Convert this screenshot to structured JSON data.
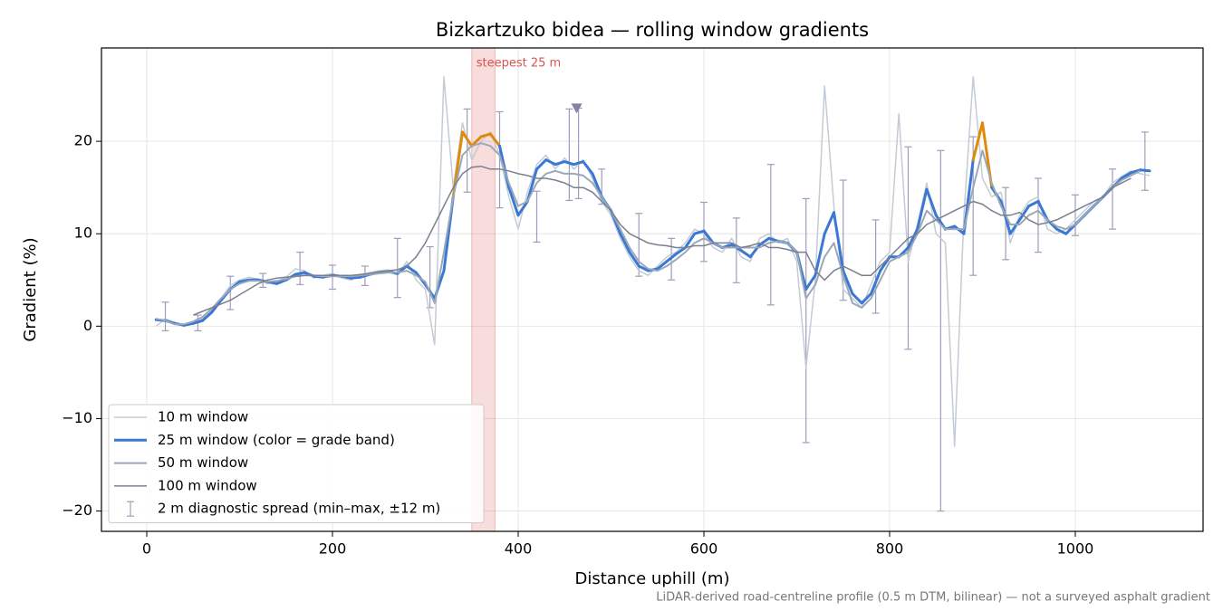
{
  "chart_data": {
    "type": "line",
    "title": "Bizkartzuko bidea — rolling window gradients",
    "x_label": "Distance uphill (m)",
    "y_label": "Gradient (%)",
    "footnote": "LiDAR-derived road-centreline profile (0.5 m DTM, bilinear) — not a surveyed asphalt gradient",
    "xlim": [
      -48.8,
      1137.6
    ],
    "ylim": [
      -22.2,
      30.1
    ],
    "xticks": [
      0,
      200,
      400,
      600,
      800,
      1000
    ],
    "yticks": [
      {
        "value": -20,
        "label": "−20"
      },
      {
        "value": -10,
        "label": "−10"
      },
      0,
      10,
      20
    ],
    "grid": true,
    "legend": "lower left",
    "x": [
      10,
      20,
      30,
      40,
      50,
      60,
      70,
      80,
      90,
      100,
      110,
      120,
      130,
      140,
      150,
      160,
      170,
      180,
      190,
      200,
      210,
      220,
      230,
      240,
      250,
      260,
      270,
      280,
      290,
      300,
      310,
      320,
      330,
      340,
      350,
      360,
      370,
      380,
      390,
      400,
      410,
      420,
      430,
      440,
      450,
      460,
      470,
      480,
      490,
      500,
      510,
      520,
      530,
      540,
      550,
      560,
      570,
      580,
      590,
      600,
      610,
      620,
      630,
      640,
      650,
      660,
      670,
      680,
      690,
      700,
      710,
      720,
      730,
      740,
      750,
      760,
      770,
      780,
      790,
      800,
      810,
      820,
      830,
      840,
      850,
      860,
      870,
      880,
      890,
      900,
      910,
      920,
      930,
      940,
      950,
      960,
      970,
      980,
      990,
      1000,
      1010,
      1020,
      1030,
      1040,
      1050,
      1060,
      1070,
      1080
    ],
    "series": [
      {
        "name": "10 m window",
        "color": "#c3ccd6",
        "width": 1.5,
        "values": [
          0.0,
          0.8,
          0.4,
          0.0,
          0.4,
          0.8,
          1.8,
          3.0,
          4.4,
          5.0,
          5.3,
          5.1,
          4.6,
          4.8,
          5.3,
          6.2,
          6.0,
          5.2,
          5.5,
          5.7,
          5.2,
          5.0,
          5.6,
          5.8,
          6.0,
          6.1,
          5.5,
          7.0,
          5.0,
          4.0,
          -2.0,
          27.0,
          15.0,
          22.0,
          18.0,
          20.0,
          21.0,
          18.5,
          14.0,
          10.5,
          14.5,
          17.5,
          18.5,
          17.0,
          18.2,
          17.0,
          18.0,
          16.0,
          13.5,
          12.0,
          9.5,
          7.5,
          6.0,
          5.5,
          6.5,
          7.5,
          8.0,
          9.0,
          10.5,
          10.0,
          8.5,
          8.0,
          9.5,
          7.5,
          7.0,
          9.5,
          10.0,
          9.0,
          9.5,
          7.0,
          -4.5,
          5.0,
          26.0,
          13.0,
          4.0,
          3.0,
          2.0,
          4.5,
          7.0,
          8.0,
          23.0,
          7.0,
          11.0,
          15.5,
          10.0,
          9.0,
          -13.0,
          12.0,
          27.0,
          16.0,
          14.0,
          14.5,
          9.0,
          12.0,
          13.5,
          14.0,
          10.5,
          10.0,
          10.5,
          11.5,
          12.5,
          13.5,
          14.0,
          15.5,
          16.2,
          16.8,
          16.5,
          16.3
        ]
      },
      {
        "name": "25 m window (color = grade band)",
        "color": "#3a78d4",
        "width": 3,
        "band_threshold": 20,
        "band_color": "#e08a0b",
        "values": [
          0.7,
          0.6,
          0.3,
          0.1,
          0.3,
          0.6,
          1.5,
          2.8,
          4.0,
          4.8,
          5.0,
          5.0,
          4.8,
          4.6,
          5.0,
          5.6,
          5.8,
          5.4,
          5.3,
          5.5,
          5.4,
          5.2,
          5.3,
          5.6,
          5.8,
          5.9,
          5.7,
          6.5,
          5.8,
          4.5,
          3.0,
          6.0,
          14.0,
          21.0,
          19.5,
          20.5,
          20.8,
          19.5,
          15.0,
          12.0,
          13.5,
          17.0,
          18.0,
          17.5,
          17.8,
          17.5,
          17.8,
          16.5,
          14.0,
          12.5,
          10.0,
          8.0,
          6.5,
          6.0,
          6.2,
          7.0,
          7.8,
          8.5,
          10.0,
          10.3,
          9.0,
          8.5,
          8.8,
          8.2,
          7.5,
          8.8,
          9.5,
          9.2,
          9.0,
          8.0,
          4.0,
          5.5,
          10.0,
          12.3,
          6.0,
          3.5,
          2.5,
          3.5,
          6.0,
          7.5,
          7.5,
          8.5,
          10.5,
          14.8,
          12.0,
          10.5,
          10.8,
          10.0,
          18.0,
          22.0,
          15.0,
          13.5,
          10.0,
          11.5,
          13.0,
          13.5,
          11.5,
          10.5,
          10.0,
          11.0,
          12.0,
          13.0,
          14.0,
          15.0,
          16.0,
          16.6,
          16.9,
          16.8
        ]
      },
      {
        "name": "50 m window",
        "color": "#9aa8b8",
        "width": 2,
        "values": [
          0.8,
          0.6,
          0.2,
          0.2,
          0.5,
          1.0,
          1.9,
          3.0,
          4.0,
          4.6,
          4.9,
          4.9,
          4.8,
          4.9,
          5.1,
          5.4,
          5.5,
          5.5,
          5.4,
          5.4,
          5.4,
          5.4,
          5.5,
          5.6,
          5.7,
          5.8,
          5.8,
          6.0,
          5.5,
          4.8,
          2.5,
          8.0,
          14.0,
          18.5,
          19.5,
          19.8,
          19.5,
          18.5,
          15.5,
          13.0,
          13.5,
          15.5,
          16.5,
          16.8,
          16.5,
          16.5,
          16.3,
          15.5,
          14.0,
          12.5,
          10.5,
          8.5,
          7.0,
          6.2,
          6.0,
          6.5,
          7.2,
          8.0,
          9.0,
          9.5,
          9.0,
          8.5,
          8.5,
          8.5,
          8.5,
          8.5,
          9.0,
          9.2,
          9.0,
          8.0,
          3.0,
          4.5,
          7.5,
          9.0,
          5.5,
          2.5,
          2.0,
          3.0,
          5.0,
          7.0,
          7.5,
          8.0,
          10.0,
          12.5,
          11.5,
          10.5,
          10.5,
          10.5,
          15.0,
          19.0,
          15.5,
          13.0,
          11.0,
          11.0,
          12.0,
          12.5,
          11.5,
          10.8,
          10.5,
          11.0,
          12.0,
          13.0,
          14.0,
          15.0,
          15.8,
          16.3,
          16.8,
          null
        ]
      },
      {
        "name": "100 m window",
        "color": "#7a8090",
        "width": 1.5,
        "values": [
          null,
          null,
          null,
          null,
          1.2,
          1.6,
          2.0,
          2.4,
          2.8,
          3.4,
          4.0,
          4.6,
          5.0,
          5.2,
          5.3,
          5.4,
          5.5,
          5.5,
          5.5,
          5.5,
          5.5,
          5.5,
          5.6,
          5.7,
          5.9,
          6.0,
          6.1,
          6.5,
          7.5,
          9.0,
          11.0,
          13.0,
          15.0,
          16.5,
          17.2,
          17.3,
          17.0,
          17.0,
          16.8,
          16.5,
          16.3,
          16.0,
          16.0,
          15.8,
          15.5,
          15.0,
          15.0,
          14.5,
          13.5,
          12.5,
          11.0,
          10.0,
          9.5,
          9.0,
          8.8,
          8.7,
          8.5,
          8.5,
          8.7,
          8.7,
          9.0,
          9.0,
          9.0,
          8.5,
          8.7,
          9.0,
          8.5,
          8.5,
          8.3,
          8.0,
          8.0,
          6.0,
          5.0,
          6.0,
          6.5,
          6.0,
          5.5,
          5.5,
          6.5,
          7.5,
          8.5,
          9.5,
          10.0,
          11.0,
          11.5,
          12.0,
          12.5,
          13.0,
          13.5,
          13.2,
          12.5,
          12.0,
          12.0,
          12.3,
          11.5,
          11.0,
          11.2,
          11.5,
          12.0,
          12.5,
          13.0,
          13.5,
          14.0,
          15.0,
          15.5,
          16.0,
          null,
          null
        ]
      }
    ],
    "errorbars": {
      "name": "2 m diagnostic spread (min–max, ±12 m)",
      "color": "#a09cbb",
      "x": [
        20,
        55,
        90,
        125,
        165,
        200,
        235,
        270,
        305,
        345,
        380,
        420,
        455,
        465,
        490,
        530,
        565,
        600,
        635,
        672,
        710,
        750,
        785,
        820,
        855,
        890,
        925,
        960,
        1000,
        1040,
        1075
      ],
      "low": [
        -0.5,
        -0.5,
        1.8,
        4.2,
        4.5,
        4.0,
        4.4,
        3.1,
        2.0,
        14.5,
        12.8,
        9.1,
        13.6,
        13.8,
        13.2,
        5.4,
        5.0,
        7.0,
        4.7,
        2.3,
        -12.6,
        2.8,
        1.4,
        -2.5,
        -20.0,
        5.5,
        7.2,
        8.0,
        9.8,
        10.5,
        14.7
      ],
      "high": [
        2.6,
        1.2,
        5.4,
        5.7,
        8.0,
        6.6,
        6.5,
        9.5,
        8.6,
        23.5,
        23.2,
        14.6,
        23.5,
        23.6,
        17.0,
        12.2,
        9.5,
        13.4,
        11.7,
        17.5,
        13.8,
        15.8,
        11.5,
        19.4,
        19.0,
        20.5,
        15.0,
        16.0,
        14.2,
        17.0,
        21.0
      ]
    },
    "highlight": {
      "x": [
        350,
        375
      ],
      "label": "steepest 25 m",
      "color": "#d9534f"
    },
    "peak_marker": {
      "x": 463,
      "y": 23.5,
      "color": "#8a7fa8"
    }
  }
}
